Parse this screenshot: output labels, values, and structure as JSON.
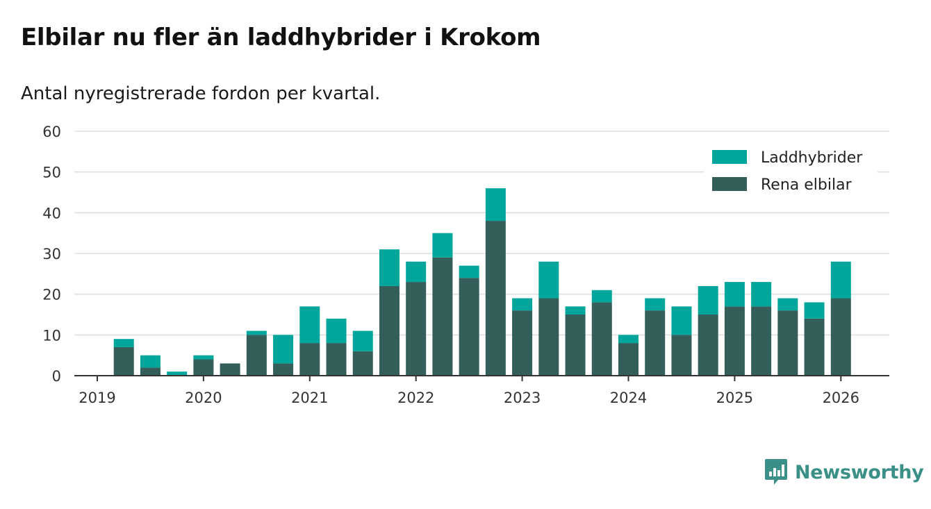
{
  "title": "Elbilar nu fler än laddhybrider i Krokom",
  "subtitle": "Antal nyregistrerade fordon per kvartal.",
  "brand": {
    "name": "Newsworthy",
    "color": "#3a8f87"
  },
  "colors": {
    "phev": "#00a69c",
    "bev": "#335e5a",
    "grid": "#dddddd",
    "axis": "#333333"
  },
  "chart_data": {
    "type": "bar",
    "stacked": true,
    "title": "Elbilar nu fler än laddhybrider i Krokom",
    "subtitle": "Antal nyregistrerade fordon per kvartal.",
    "xlabel": "",
    "ylabel": "",
    "ylim": [
      0,
      60
    ],
    "yticks": [
      0,
      10,
      20,
      30,
      40,
      50,
      60
    ],
    "xticks": [
      "2019",
      "2020",
      "2021",
      "2022",
      "2023",
      "2024",
      "2025",
      "2026"
    ],
    "legend_position": "top-right",
    "categories": [
      "2019 Q1",
      "2019 Q2",
      "2019 Q3",
      "2019 Q4",
      "2020 Q1",
      "2020 Q2",
      "2020 Q3",
      "2020 Q4",
      "2021 Q1",
      "2021 Q2",
      "2021 Q3",
      "2021 Q4",
      "2022 Q1",
      "2022 Q2",
      "2022 Q3",
      "2022 Q4",
      "2023 Q1",
      "2023 Q2",
      "2023 Q3",
      "2023 Q4",
      "2024 Q1",
      "2024 Q2",
      "2024 Q3",
      "2024 Q4",
      "2025 Q1",
      "2025 Q2",
      "2025 Q3",
      "2025 Q4"
    ],
    "series": [
      {
        "name": "Rena elbilar",
        "color": "#335e5a",
        "values": [
          7,
          2,
          0,
          4,
          3,
          10,
          3,
          8,
          8,
          6,
          22,
          23,
          29,
          24,
          38,
          16,
          19,
          15,
          18,
          8,
          16,
          10,
          15,
          17,
          17,
          16,
          14,
          19
        ]
      },
      {
        "name": "Laddhybrider",
        "color": "#00a69c",
        "values": [
          2,
          3,
          1,
          1,
          0,
          1,
          7,
          9,
          6,
          5,
          9,
          5,
          6,
          3,
          8,
          3,
          9,
          2,
          3,
          2,
          3,
          7,
          7,
          6,
          6,
          3,
          4,
          9
        ]
      }
    ]
  }
}
